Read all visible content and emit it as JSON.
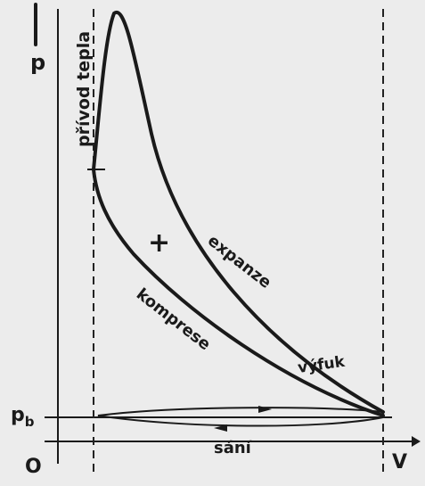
{
  "axes": {
    "y_label": "p",
    "x_label": "V",
    "origin": "O",
    "base_pressure": {
      "main": "p",
      "sub": "b"
    }
  },
  "labels": {
    "heat_input": "přívod tepla",
    "sign": "+",
    "expansion": "expanze",
    "compression": "komprese",
    "exhaust": "výfuk",
    "intake": "sání"
  }
}
